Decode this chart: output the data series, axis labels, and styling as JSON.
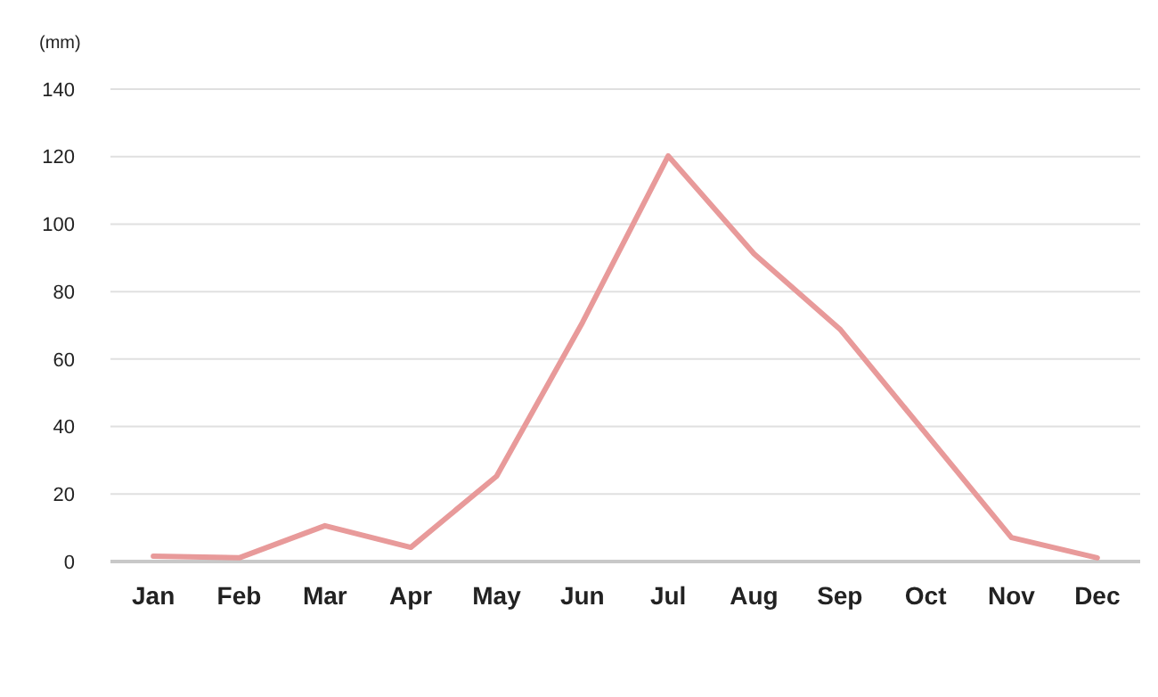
{
  "chart_data": {
    "type": "line",
    "ylabel": "(mm)",
    "categories": [
      "Jan",
      "Feb",
      "Mar",
      "Apr",
      "May",
      "Jun",
      "Jul",
      "Aug",
      "Sep",
      "Oct",
      "Nov",
      "Dec"
    ],
    "series": [
      {
        "color": "#e89a9a",
        "values": [
          1.6,
          1.1,
          10.6,
          4.2,
          25.3,
          70.8,
          120.2,
          91.2,
          68.9,
          38,
          7.1,
          1.1
        ]
      }
    ],
    "ylim": [
      0,
      140
    ],
    "yticks": [
      0,
      20,
      40,
      60,
      80,
      100,
      120,
      140
    ],
    "grid": "y",
    "marker": "none",
    "line_style": "solid"
  }
}
